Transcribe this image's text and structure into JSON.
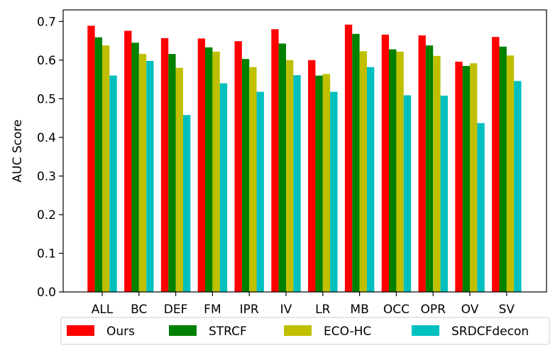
{
  "chart_data": {
    "type": "bar",
    "title": "",
    "xlabel": "",
    "ylabel": "AUC Score",
    "ylim": [
      0,
      0.73
    ],
    "yticks": [
      0.0,
      0.1,
      0.2,
      0.3,
      0.4,
      0.5,
      0.6,
      0.7
    ],
    "ytick_labels": [
      "0.0",
      "0.1",
      "0.2",
      "0.3",
      "0.4",
      "0.5",
      "0.6",
      "0.7"
    ],
    "categories": [
      "ALL",
      "BC",
      "DEF",
      "FM",
      "IPR",
      "IV",
      "LR",
      "MB",
      "OCC",
      "OPR",
      "OV",
      "SV"
    ],
    "grid": false,
    "legend_position": "bottom",
    "series": [
      {
        "name": "Ours",
        "color": "#ff0000",
        "values": [
          0.689,
          0.676,
          0.657,
          0.656,
          0.649,
          0.68,
          0.6,
          0.692,
          0.666,
          0.664,
          0.596,
          0.66
        ]
      },
      {
        "name": "STRCF",
        "color": "#008000",
        "values": [
          0.659,
          0.645,
          0.616,
          0.633,
          0.603,
          0.643,
          0.56,
          0.668,
          0.628,
          0.638,
          0.585,
          0.635
        ]
      },
      {
        "name": "ECO-HC",
        "color": "#bfbf00",
        "values": [
          0.638,
          0.616,
          0.58,
          0.622,
          0.582,
          0.6,
          0.564,
          0.623,
          0.622,
          0.611,
          0.592,
          0.612
        ]
      },
      {
        "name": "SRDCFdecon",
        "color": "#00bfbf",
        "values": [
          0.56,
          0.598,
          0.458,
          0.54,
          0.518,
          0.561,
          0.518,
          0.582,
          0.509,
          0.508,
          0.437,
          0.546
        ]
      }
    ]
  }
}
